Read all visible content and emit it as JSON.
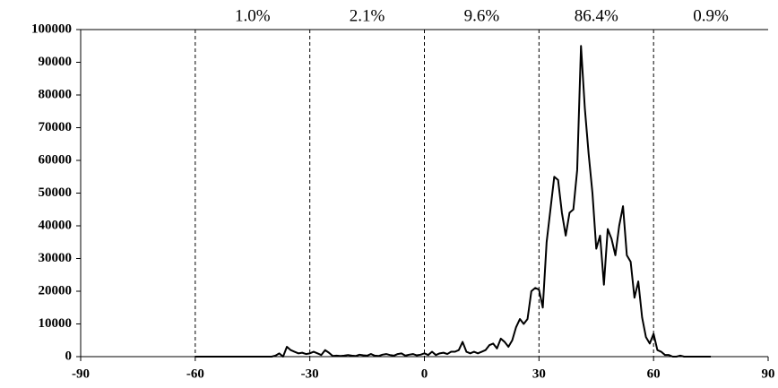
{
  "chart_data": {
    "type": "line",
    "x": [
      -60,
      -59,
      -58,
      -57,
      -56,
      -55,
      -54,
      -53,
      -52,
      -51,
      -50,
      -49,
      -48,
      -47,
      -46,
      -45,
      -44,
      -43,
      -42,
      -41,
      -40,
      -39,
      -38,
      -37,
      -36,
      -35,
      -34,
      -33,
      -32,
      -31,
      -30,
      -29,
      -28,
      -27,
      -26,
      -25,
      -24,
      -23,
      -22,
      -21,
      -20,
      -19,
      -18,
      -17,
      -16,
      -15,
      -14,
      -13,
      -12,
      -11,
      -10,
      -9,
      -8,
      -7,
      -6,
      -5,
      -4,
      -3,
      -2,
      -1,
      0,
      1,
      2,
      3,
      4,
      5,
      6,
      7,
      8,
      9,
      10,
      11,
      12,
      13,
      14,
      15,
      16,
      17,
      18,
      19,
      20,
      21,
      22,
      23,
      24,
      25,
      26,
      27,
      28,
      29,
      30,
      31,
      32,
      33,
      34,
      35,
      36,
      37,
      38,
      39,
      40,
      41,
      42,
      43,
      44,
      45,
      46,
      47,
      48,
      49,
      50,
      51,
      52,
      53,
      54,
      55,
      56,
      57,
      58,
      59,
      60,
      61,
      62,
      63,
      64,
      65,
      66,
      67,
      68,
      69,
      70,
      71,
      72,
      73,
      74,
      75
    ],
    "values": [
      0,
      0,
      0,
      0,
      0,
      0,
      0,
      0,
      0,
      0,
      0,
      0,
      0,
      0,
      0,
      0,
      0,
      0,
      0,
      0,
      0,
      300,
      1000,
      0,
      3000,
      2000,
      1500,
      1000,
      1200,
      800,
      1000,
      1500,
      1000,
      500,
      2000,
      1200,
      200,
      300,
      200,
      300,
      500,
      300,
      200,
      600,
      400,
      300,
      800,
      300,
      200,
      600,
      800,
      500,
      300,
      800,
      1000,
      300,
      600,
      800,
      400,
      600,
      1000,
      500,
      1500,
      500,
      1000,
      1200,
      800,
      1500,
      1500,
      2000,
      4500,
      1500,
      1000,
      1500,
      1000,
      1500,
      2000,
      3500,
      4000,
      2500,
      5500,
      4500,
      3000,
      5000,
      9000,
      11500,
      10000,
      11500,
      20000,
      21000,
      20500,
      15000,
      35000,
      45000,
      55000,
      54000,
      44000,
      37000,
      44000,
      45000,
      57000,
      95000,
      76000,
      62000,
      50000,
      33000,
      37000,
      22000,
      39000,
      36000,
      31000,
      40000,
      46000,
      31000,
      29000,
      18000,
      23000,
      12000,
      6000,
      4000,
      7000,
      2000,
      1500,
      500,
      500,
      0,
      0,
      300,
      0,
      0,
      0,
      0,
      0,
      0,
      0,
      0
    ],
    "color": "#000000",
    "xlim": [
      -90,
      90
    ],
    "xticks": [
      -90,
      -60,
      -30,
      0,
      30,
      60,
      90
    ],
    "ylim": [
      0,
      100000
    ],
    "yticks": [
      0,
      10000,
      20000,
      30000,
      40000,
      50000,
      60000,
      70000,
      80000,
      90000,
      100000
    ],
    "vlines": [
      -60,
      -30,
      0,
      30,
      60
    ],
    "annotations": [
      "1.0%",
      "2.1%",
      "9.6%",
      "86.4%",
      "0.9%"
    ]
  }
}
